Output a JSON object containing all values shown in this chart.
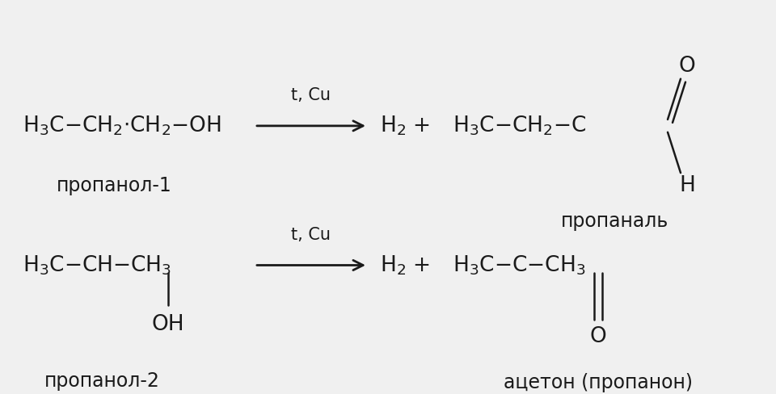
{
  "background_color": "#f0f0f0",
  "text_color": "#1a1a1a",
  "fs_main": 19,
  "fs_label": 17,
  "fs_cond": 15,
  "r1_reactant": "H$_3$C$-$CH$_2$$\\cdot$CH$_2$$-$OH",
  "r1_label": "пропанол-1",
  "r1_cond": "t, Cu",
  "r1_prod_left": "H$_2$ +",
  "r1_prod_chain": "H$_3$C$-$CH$_2$$-$C",
  "r1_prod_O": "O",
  "r1_prod_H": "H",
  "r1_prod_label": "пропаналь",
  "r2_reactant": "H$_3$C$-$CH$-$CH$_3$",
  "r2_react_OH": "OH",
  "r2_label": "пропанол-2",
  "r2_cond": "t, Cu",
  "r2_prod_left": "H$_2$ +",
  "r2_prod_chain": "H$_3$C$-$C$-$CH$_3$",
  "r2_prod_O": "O",
  "r2_prod_label": "ацетон (пропанон)"
}
